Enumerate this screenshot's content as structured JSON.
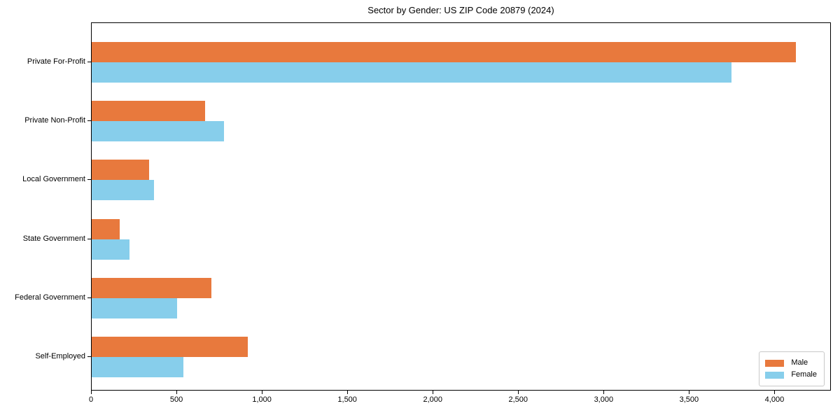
{
  "chart_data": {
    "type": "bar",
    "orientation": "horizontal",
    "title": "Sector by Gender: US ZIP Code 20879 (2024)",
    "categories": [
      "Private For-Profit",
      "Private Non-Profit",
      "Local Government",
      "State Government",
      "Federal Government",
      "Self-Employed"
    ],
    "series": [
      {
        "name": "Male",
        "color": "#e8793d",
        "values": [
          4120,
          665,
          335,
          165,
          700,
          915
        ]
      },
      {
        "name": "Female",
        "color": "#87ceeb",
        "values": [
          3745,
          775,
          365,
          220,
          500,
          535
        ]
      }
    ],
    "xlim": [
      0,
      4330
    ],
    "xticks": [
      0,
      500,
      1000,
      1500,
      2000,
      2500,
      3000,
      3500,
      4000
    ],
    "xtick_labels": [
      "0",
      "500",
      "1,000",
      "1,500",
      "2,000",
      "2,500",
      "3,000",
      "3,500",
      "4,000"
    ],
    "grid": false,
    "legend_position": "lower right",
    "axis_color": "#000000",
    "background_color": "#ffffff"
  }
}
